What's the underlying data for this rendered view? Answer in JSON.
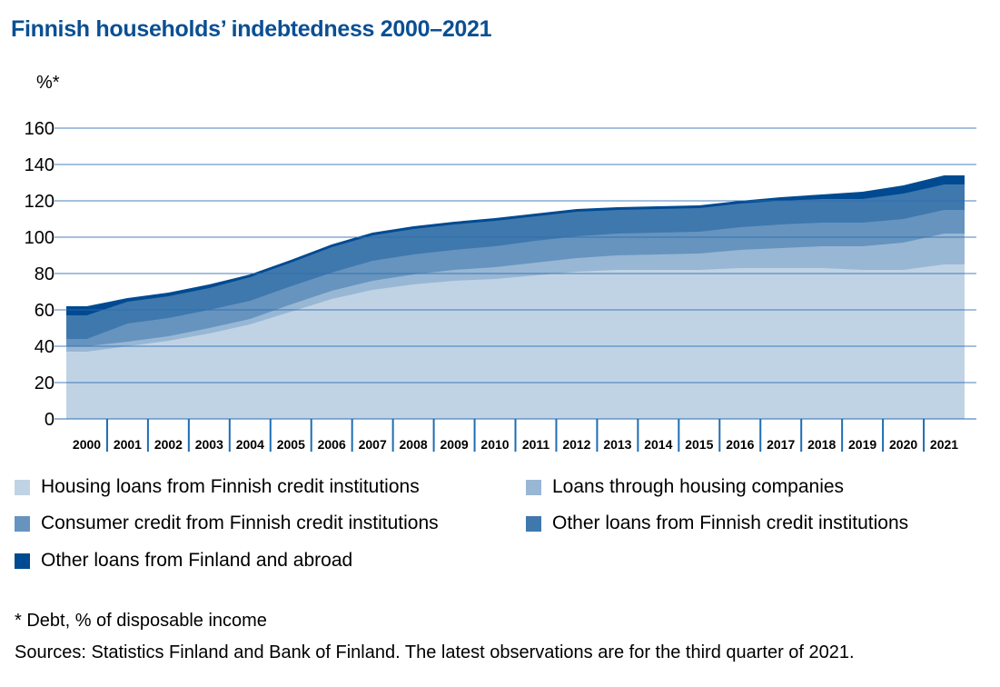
{
  "title": "Finnish households’ indebtedness 2000–2021",
  "y_unit_label": "%*",
  "footnote": "* Debt, % of disposable income",
  "sources": "Sources: Statistics Finland and Bank of Finland. The latest observations are for the third quarter of 2021.",
  "legend": [
    {
      "label": "Housing loans from Finnish credit institutions",
      "color": "#c0d3e5"
    },
    {
      "label": "Loans through housing companies",
      "color": "#98b7d4"
    },
    {
      "label": "Consumer credit from Finnish credit institutions",
      "color": "#6694bf"
    },
    {
      "label": "Other loans from Finnish credit institutions",
      "color": "#3f78ad"
    },
    {
      "label": "Other loans from Finland and abroad",
      "color": "#004a91"
    }
  ],
  "chart_data": {
    "type": "area",
    "stacked": true,
    "title": "Finnish households’ indebtedness 2000–2021",
    "xlabel": "",
    "ylabel": "%*",
    "ylim": [
      0,
      160
    ],
    "yticks": [
      0,
      20,
      40,
      60,
      80,
      100,
      120,
      140,
      160
    ],
    "grid": true,
    "legend_position": "bottom",
    "categories": [
      "2000",
      "2001",
      "2002",
      "2003",
      "2004",
      "2005",
      "2006",
      "2007",
      "2008",
      "2009",
      "2010",
      "2011",
      "2012",
      "2013",
      "2014",
      "2015",
      "2016",
      "2017",
      "2018",
      "2019",
      "2020",
      "2021"
    ],
    "series": [
      {
        "name": "Housing loans from Finnish credit institutions",
        "values": [
          37,
          40,
          43,
          47,
          52,
          59,
          66,
          71,
          74,
          76,
          77,
          79,
          81,
          82,
          82,
          82,
          83,
          83,
          83,
          82,
          82,
          85
        ]
      },
      {
        "name": "Loans through housing companies",
        "values": [
          3,
          2.5,
          2.5,
          3,
          3,
          4,
          4.5,
          5,
          5.5,
          6,
          6.5,
          7,
          7.5,
          8,
          8.5,
          9,
          10,
          11,
          12,
          13,
          15,
          17
        ]
      },
      {
        "name": "Consumer credit from Finnish credit institutions",
        "values": [
          4,
          10,
          10,
          10,
          10,
          10,
          10,
          11,
          11,
          11,
          11.5,
          12,
          12,
          12,
          12,
          12,
          12.5,
          13,
          13,
          13,
          13,
          13
        ]
      },
      {
        "name": "Other loans from Finnish credit institutions",
        "values": [
          13,
          12,
          12,
          12,
          13,
          13,
          14,
          14,
          14,
          14,
          14,
          13.5,
          13.5,
          13,
          13,
          13,
          13,
          13,
          13,
          13,
          14,
          14
        ]
      },
      {
        "name": "Other loans from Finland and abroad",
        "values": [
          5,
          2,
          2,
          2,
          1.5,
          1.5,
          1.5,
          1.5,
          1.5,
          1.5,
          1.5,
          1.5,
          1.5,
          1.5,
          1.5,
          1.5,
          1.5,
          2,
          2.5,
          4,
          4.5,
          5
        ]
      }
    ]
  }
}
